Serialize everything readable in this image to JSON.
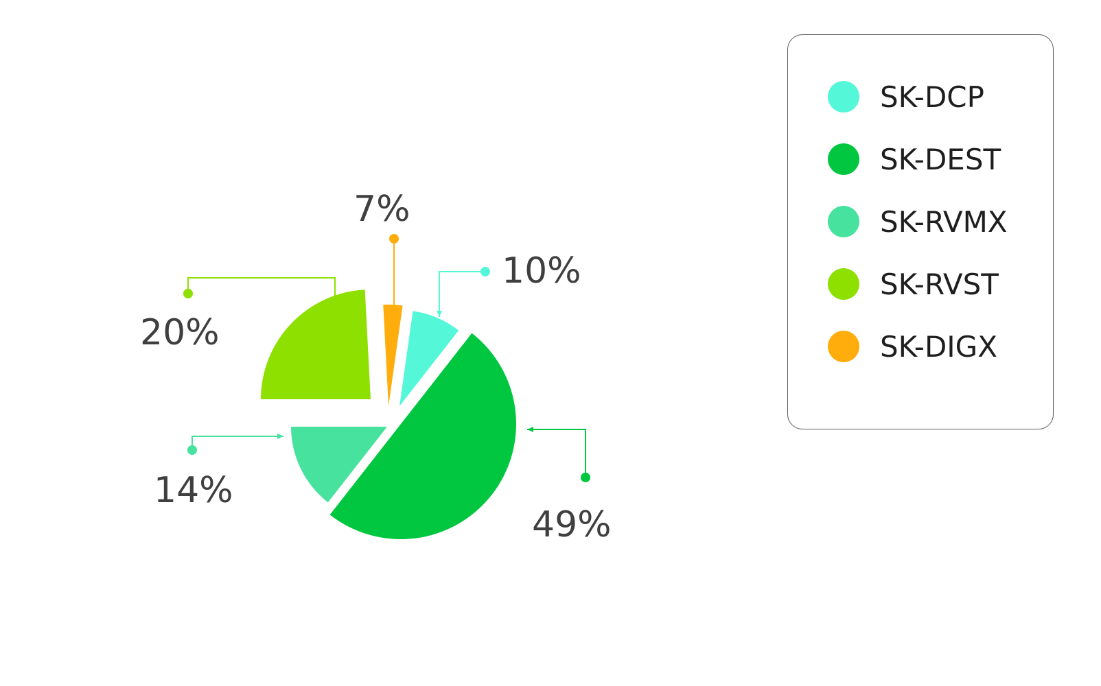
{
  "chart_data": {
    "type": "pie",
    "title": "",
    "legend_position": "top-right",
    "slices": [
      {
        "name": "SK-DCP",
        "value": 10,
        "label": "10%",
        "color": "#55f7d9"
      },
      {
        "name": "SK-DEST",
        "value": 49,
        "label": "49%",
        "color": "#00c73f"
      },
      {
        "name": "SK-RVMX",
        "value": 14,
        "label": "14%",
        "color": "#47e29d"
      },
      {
        "name": "SK-RVST",
        "value": 20,
        "label": "20%",
        "color": "#8ee000"
      },
      {
        "name": "SK-DIGX",
        "value": 7,
        "label": "7%",
        "color": "#ffad0d"
      }
    ]
  }
}
